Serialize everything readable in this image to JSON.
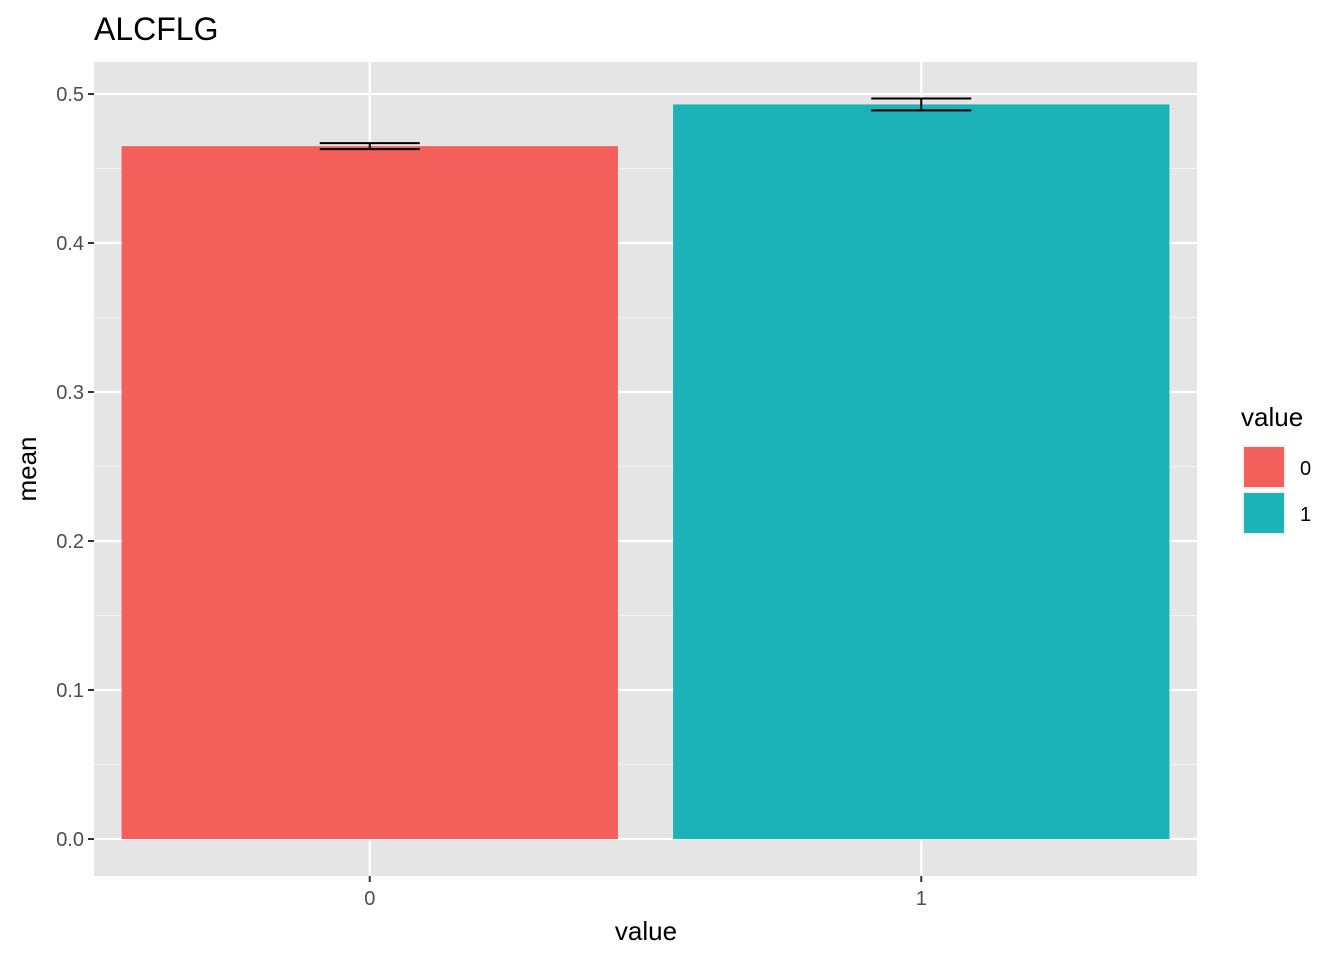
{
  "chart_data": {
    "type": "bar",
    "title": "ALCFLG",
    "xlabel": "value",
    "ylabel": "mean",
    "categories": [
      "0",
      "1"
    ],
    "values": [
      0.465,
      0.493
    ],
    "error_bars": [
      {
        "low": 0.463,
        "high": 0.467
      },
      {
        "low": 0.489,
        "high": 0.497
      }
    ],
    "ylim": [
      -0.025,
      0.525
    ],
    "yticks": [
      0.0,
      0.1,
      0.2,
      0.3,
      0.4,
      0.5
    ],
    "ytick_labels": [
      "0.0",
      "0.1",
      "0.2",
      "0.3",
      "0.4",
      "0.5"
    ],
    "colors": [
      "#F3605B",
      "#1BB3B8"
    ],
    "grid": true,
    "panel_background": "#E5E5E5",
    "legend": {
      "title": "value",
      "position": "right",
      "entries": [
        {
          "label": "0",
          "color": "#F3605B"
        },
        {
          "label": "1",
          "color": "#1BB3B8"
        }
      ]
    }
  }
}
